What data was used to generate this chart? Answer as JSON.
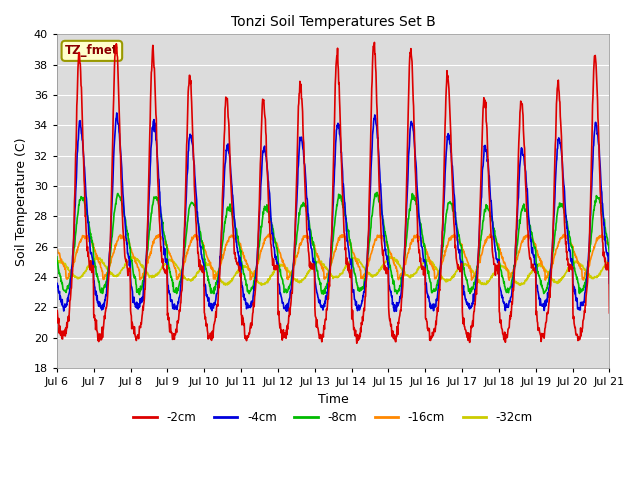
{
  "title": "Tonzi Soil Temperatures Set B",
  "xlabel": "Time",
  "ylabel": "Soil Temperature (C)",
  "ylim": [
    18,
    40
  ],
  "annotation": "TZ_fmet",
  "legend_labels": [
    "-2cm",
    "-4cm",
    "-8cm",
    "-16cm",
    "-32cm"
  ],
  "legend_colors": [
    "#dd0000",
    "#0000dd",
    "#00bb00",
    "#ff8800",
    "#cccc00"
  ],
  "background_color": "#dcdcdc",
  "x_tick_labels": [
    "Jul 6",
    "Jul 7",
    "Jul 8",
    "Jul 9",
    "Jul 10",
    "Jul 11",
    "Jul 12",
    "Jul 13",
    "Jul 14",
    "Jul 15",
    "Jul 16",
    "Jul 17",
    "Jul 18",
    "Jul 19",
    "Jul 20",
    "Jul 21"
  ],
  "line_width": 1.2,
  "grid_color": "#ffffff"
}
